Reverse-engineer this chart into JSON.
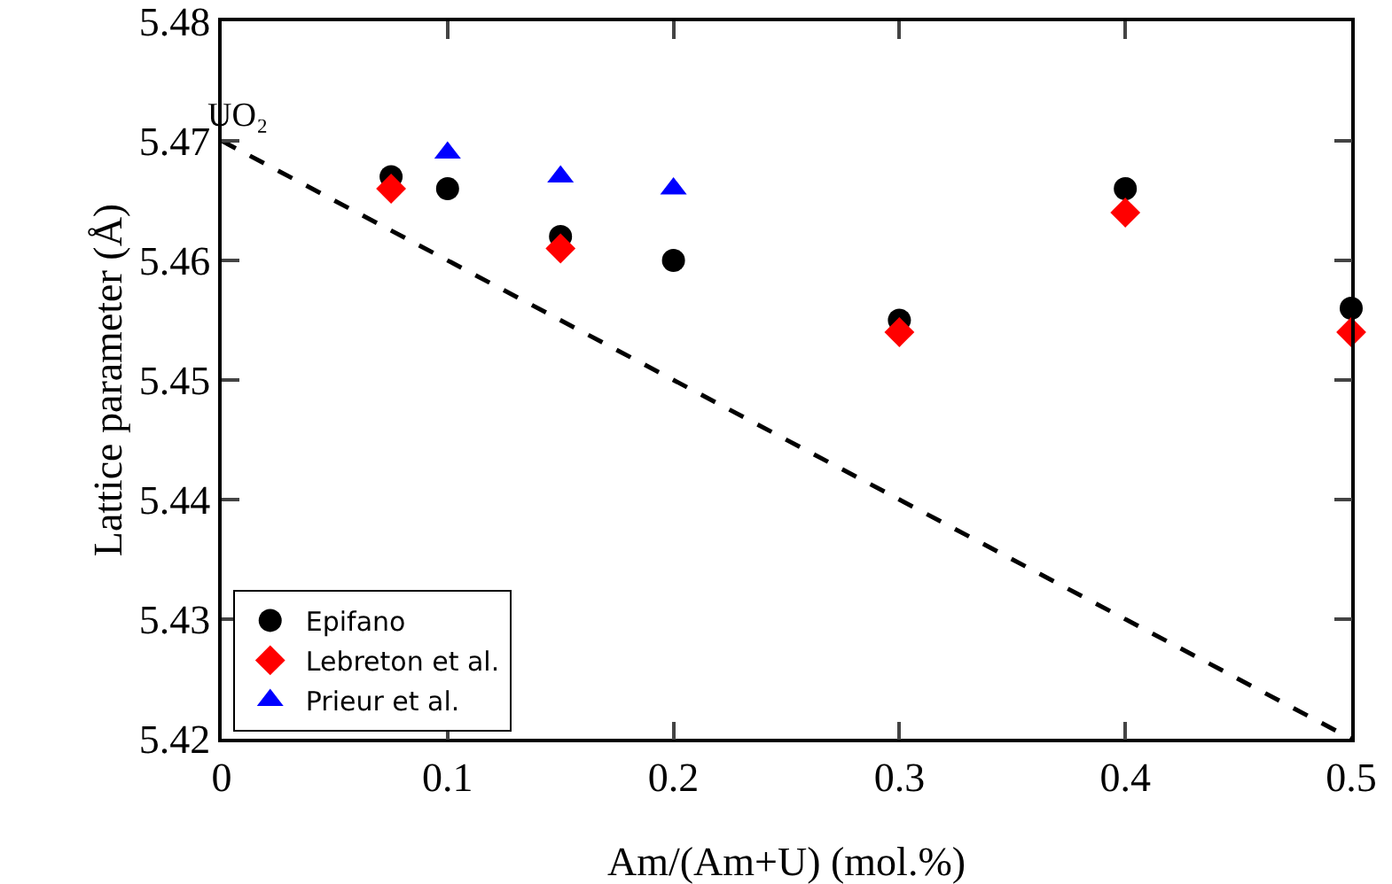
{
  "chart_data": {
    "type": "scatter",
    "xlabel": "Am/(Am+U) (mol.%)",
    "ylabel": "Lattice parameter (Å)",
    "xlim": [
      0,
      0.5
    ],
    "xticks": [
      0,
      0.1,
      0.2,
      0.3,
      0.4,
      0.5
    ],
    "ylim": [
      5.42,
      5.48
    ],
    "yticks": [
      5.42,
      5.43,
      5.44,
      5.45,
      5.46,
      5.47,
      5.48
    ],
    "grid": false,
    "legend": "bottom left",
    "annotations": [
      {
        "text": "UO₂",
        "x": 0,
        "y": 5.47
      }
    ],
    "series": [
      {
        "name": "Epifano",
        "color": "#000000",
        "marker": "circle",
        "x": [
          0.075,
          0.1,
          0.15,
          0.2,
          0.3,
          0.4,
          0.5
        ],
        "values": [
          5.467,
          5.466,
          5.462,
          5.46,
          5.455,
          5.466,
          5.456
        ]
      },
      {
        "name": "Lebreton et al.",
        "color": "#ff0000",
        "marker": "diamond",
        "x": [
          0.075,
          0.15,
          0.3,
          0.4,
          0.5
        ],
        "values": [
          5.466,
          5.461,
          5.454,
          5.464,
          5.454
        ]
      },
      {
        "name": "Prieur et al.",
        "color": "#0000ff",
        "marker": "triangle",
        "x": [
          0.1,
          0.15,
          0.2
        ],
        "values": [
          5.469,
          5.467,
          5.466
        ]
      },
      {
        "type": "line",
        "color": "#000000",
        "marker": "none",
        "line_style": "dashed",
        "x": [
          0,
          0.5
        ],
        "values": [
          5.47,
          5.42
        ]
      }
    ]
  }
}
